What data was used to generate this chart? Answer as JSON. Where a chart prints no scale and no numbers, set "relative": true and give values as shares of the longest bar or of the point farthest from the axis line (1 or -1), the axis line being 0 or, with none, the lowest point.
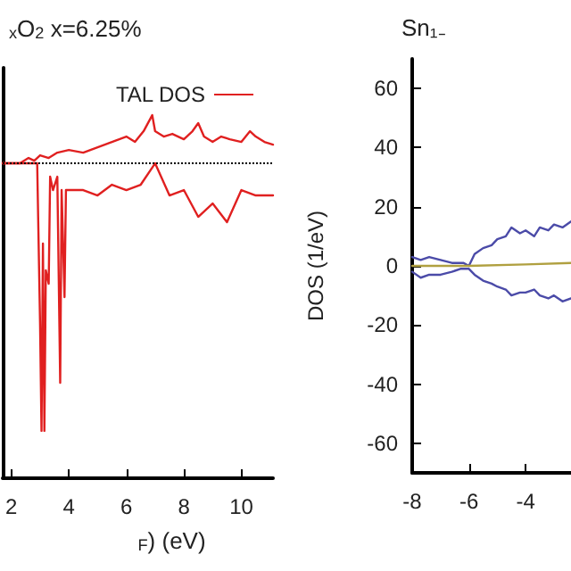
{
  "chart_data": [
    {
      "type": "line",
      "title": "$_{x}$O$_{2}$ x=6.25%",
      "xlabel": "$_{F}$) (eV)",
      "relative": true,
      "xlim": [
        1.7,
        11.1
      ],
      "xticks": [
        2,
        4,
        6,
        8,
        10
      ],
      "legend": "top right",
      "grid": false,
      "marker": "none",
      "line_style": "solid",
      "ref_lines": [
        {
          "axis": "y",
          "value": 0,
          "line_style": "dotted",
          "color": "#000000"
        }
      ],
      "series": [
        {
          "name": "TAL DOS",
          "color": "#e02020",
          "x": [
            1.7,
            2.3,
            2.6,
            2.8,
            3.0,
            3.3,
            3.6,
            4.0,
            4.5,
            5.0,
            5.5,
            6.0,
            6.3,
            6.6,
            6.9,
            7.0,
            7.3,
            7.6,
            8.0,
            8.3,
            8.5,
            8.7,
            9.0,
            9.3,
            9.6,
            10.0,
            10.3,
            10.5,
            10.8,
            11.1
          ],
          "values": [
            0,
            0,
            0.02,
            0.01,
            0.03,
            0.02,
            0.04,
            0.05,
            0.04,
            0.06,
            0.08,
            0.1,
            0.08,
            0.12,
            0.18,
            0.12,
            0.1,
            0.11,
            0.09,
            0.12,
            0.15,
            0.1,
            0.08,
            0.1,
            0.09,
            0.08,
            0.12,
            0.1,
            0.08,
            0.07
          ]
        },
        {
          "color": "#e02020",
          "x": [
            1.7,
            2.9,
            3.0,
            3.05,
            3.1,
            3.15,
            3.2,
            3.3,
            3.35,
            3.45,
            3.6,
            3.7,
            3.75,
            3.85,
            3.9,
            4.0,
            4.5,
            5.0,
            5.5,
            6.0,
            6.5,
            7.0,
            7.5,
            8.0,
            8.5,
            9.0,
            9.5,
            10.0,
            10.5,
            11.1
          ],
          "values": [
            0,
            0,
            -0.6,
            -1,
            -0.3,
            -1,
            -0.4,
            -0.45,
            -0.05,
            -0.1,
            -0.05,
            -0.82,
            -0.1,
            -0.5,
            -0.1,
            -0.1,
            -0.1,
            -0.12,
            -0.08,
            -0.1,
            -0.08,
            0,
            -0.12,
            -0.1,
            -0.2,
            -0.15,
            -0.22,
            -0.1,
            -0.12,
            -0.12
          ]
        }
      ]
    },
    {
      "type": "line",
      "title": "Sn₁₋",
      "ylabel": "DOS (1/eV)",
      "xlim": [
        -8,
        -2.4
      ],
      "xticks": [
        -8,
        -6,
        -4
      ],
      "ylim": [
        -70,
        70
      ],
      "yticks": [
        -60,
        -40,
        -20,
        0,
        20,
        40,
        60
      ],
      "grid": false,
      "legend": false,
      "marker": "none",
      "line_style": "solid",
      "series": [
        {
          "color": "#4b4ba8",
          "x": [
            -8,
            -7.7,
            -7.4,
            -7,
            -6.6,
            -6.2,
            -6,
            -5.8,
            -5.5,
            -5.2,
            -5,
            -4.7,
            -4.5,
            -4.2,
            -4,
            -3.7,
            -3.5,
            -3.2,
            -3,
            -2.7,
            -2.4
          ],
          "values": [
            3,
            2,
            3,
            2,
            1,
            1,
            0,
            4,
            6,
            7,
            9,
            10,
            13,
            11,
            12,
            10,
            13,
            12,
            14,
            13,
            15
          ]
        },
        {
          "color": "#4b4ba8",
          "x": [
            -8,
            -7.7,
            -7.4,
            -7,
            -6.6,
            -6.3,
            -6,
            -5.8,
            -5.5,
            -5.2,
            -5,
            -4.7,
            -4.5,
            -4.2,
            -4,
            -3.7,
            -3.5,
            -3.2,
            -3,
            -2.7,
            -2.4
          ],
          "values": [
            -2,
            -4,
            -3,
            -3,
            -2,
            -1,
            -1,
            -3,
            -5,
            -6,
            -7,
            -8,
            -10,
            -9,
            -9,
            -8,
            -10,
            -11,
            -10,
            -12,
            -11
          ]
        },
        {
          "color": "#b0a040",
          "x": [
            -8,
            -6,
            -4,
            -2.4
          ],
          "values": [
            0,
            0,
            0.5,
            1
          ]
        }
      ]
    }
  ]
}
